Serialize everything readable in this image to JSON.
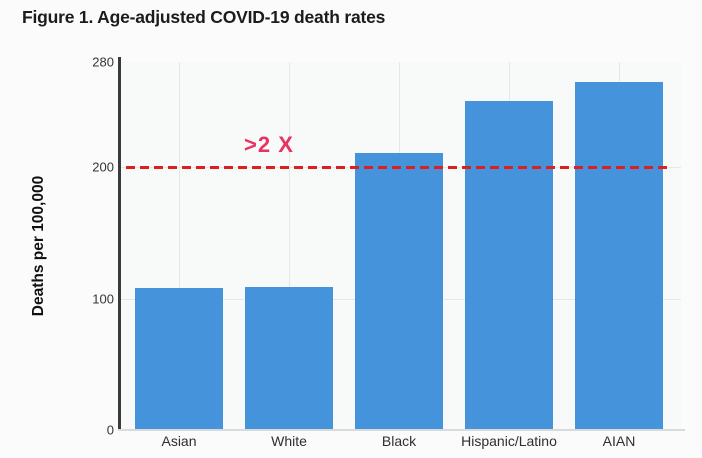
{
  "figure": {
    "title": "Figure 1. Age-adjusted COVID-19 death rates"
  },
  "chart_data": {
    "type": "bar",
    "title": "Figure 1. Age-adjusted COVID-19 death rates",
    "categories": [
      "Asian",
      "White",
      "Black",
      "Hispanic/Latino",
      "AIAN"
    ],
    "values": [
      108,
      109,
      211,
      250,
      265
    ],
    "xlabel": "",
    "ylabel": "Deaths per 100,000",
    "ylim": [
      0,
      280
    ],
    "yticks": [
      0,
      100,
      200,
      280
    ],
    "grid": true,
    "legend": false,
    "bar_color": "#4493db",
    "plot_bg": "#f8f9f9",
    "axis_color": "#3a3a3a",
    "reference_line": {
      "value": 200,
      "style": "dashed",
      "color": "#dd1f1f",
      "label": ">2 X",
      "label_color": "#e93262"
    }
  }
}
